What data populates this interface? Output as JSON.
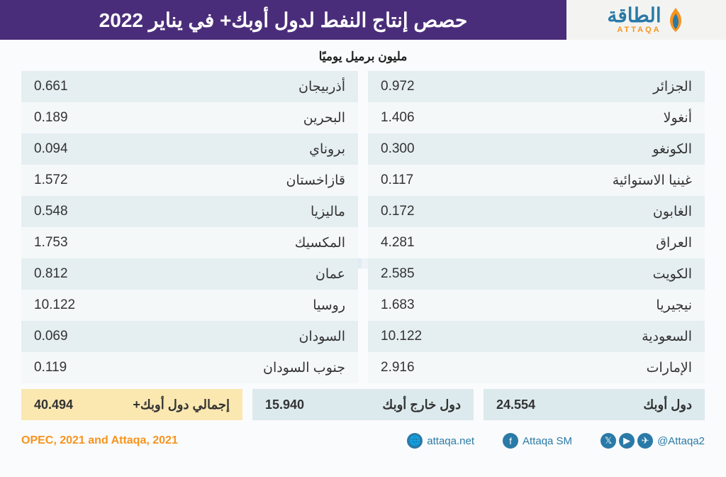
{
  "header": {
    "title": "حصص إنتاج النفط لدول أوبك+ في يناير 2022",
    "logo_main": "الطاقة",
    "logo_sub": "ATTAQA"
  },
  "subtitle": "مليون برميل يوميًا",
  "columns": {
    "right": [
      {
        "country": "الجزائر",
        "value": "0.972"
      },
      {
        "country": "أنغولا",
        "value": "1.406"
      },
      {
        "country": "الكونغو",
        "value": "0.300"
      },
      {
        "country": "غينيا الاستوائية",
        "value": "0.117"
      },
      {
        "country": "الغابون",
        "value": "0.172"
      },
      {
        "country": "العراق",
        "value": "4.281"
      },
      {
        "country": "الكويت",
        "value": "2.585"
      },
      {
        "country": "نيجيريا",
        "value": "1.683"
      },
      {
        "country": "السعودية",
        "value": "10.122"
      },
      {
        "country": "الإمارات",
        "value": "2.916"
      }
    ],
    "left": [
      {
        "country": "أذربيجان",
        "value": "0.661"
      },
      {
        "country": "البحرين",
        "value": "0.189"
      },
      {
        "country": "بروناي",
        "value": "0.094"
      },
      {
        "country": "قازاخستان",
        "value": "1.572"
      },
      {
        "country": "ماليزيا",
        "value": "0.548"
      },
      {
        "country": "المكسيك",
        "value": "1.753"
      },
      {
        "country": "عمان",
        "value": "0.812"
      },
      {
        "country": "روسيا",
        "value": "10.122"
      },
      {
        "country": "السودان",
        "value": "0.069"
      },
      {
        "country": "جنوب السودان",
        "value": "0.119"
      }
    ]
  },
  "totals": [
    {
      "label": "دول أوبك",
      "value": "24.554",
      "style": "gray"
    },
    {
      "label": "دول خارج أوبك",
      "value": "15.940",
      "style": "gray"
    },
    {
      "label": "إجمالي دول أوبك+",
      "value": "40.494",
      "style": "yellow"
    }
  ],
  "footer": {
    "source": "OPEC, 2021 and Attaqa, 2021",
    "links": [
      {
        "text": "attaqa.net",
        "icon": "globe"
      },
      {
        "text": "Attaqa SM",
        "icon": "fb"
      },
      {
        "text": "@Attaqa2",
        "icon": "social"
      }
    ]
  },
  "colors": {
    "header_bg": "#4a2d7a",
    "row_odd": "#e5eef1",
    "row_even": "#f5f8f9",
    "total_yellow": "#fbe8b1",
    "total_gray": "#dceaee",
    "brand_blue": "#2a7aa7",
    "brand_orange": "#f7931e"
  },
  "watermark": "الطاقة"
}
